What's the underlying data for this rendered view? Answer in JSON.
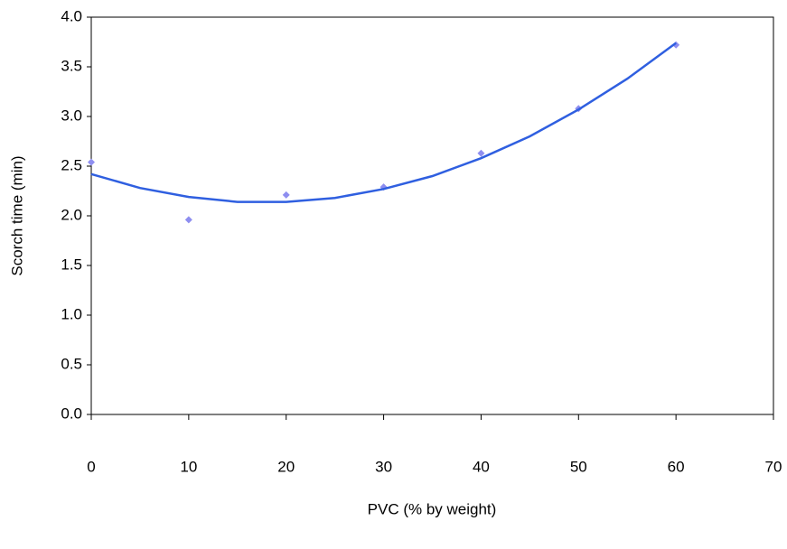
{
  "chart_data": {
    "type": "scatter",
    "x_label": "PVC (% by weight)",
    "y_label": "Scorch  time  (min)",
    "xlim": [
      0,
      70
    ],
    "xticks": [
      0,
      10,
      20,
      30,
      40,
      50,
      60,
      70
    ],
    "ylim": [
      0,
      4
    ],
    "yticks": [
      {
        "value": 0,
        "label": "0.0"
      },
      {
        "value": 0.5,
        "label": "0.5"
      },
      {
        "value": 1,
        "label": "1.0"
      },
      {
        "value": 1.5,
        "label": "1.5"
      },
      {
        "value": 2,
        "label": "2.0"
      },
      {
        "value": 2.5,
        "label": "2.5"
      },
      {
        "value": 3,
        "label": "3.0"
      },
      {
        "value": 3.5,
        "label": "3.5"
      },
      {
        "value": 4,
        "label": "4.0"
      }
    ],
    "series": [
      {
        "color": "#8e8ef0",
        "marker": "diamond",
        "x": [
          0,
          10,
          20,
          30,
          40,
          50,
          60
        ],
        "y": [
          2.54,
          1.96,
          2.21,
          2.29,
          2.63,
          3.08,
          3.72
        ]
      },
      {
        "color": "#2f5fe0",
        "marker": "line",
        "x": [
          0,
          5,
          10,
          15,
          20,
          25,
          30,
          35,
          40,
          45,
          50,
          55,
          60
        ],
        "y": [
          2.42,
          2.28,
          2.19,
          2.14,
          2.14,
          2.18,
          2.27,
          2.4,
          2.58,
          2.8,
          3.07,
          3.38,
          3.74
        ]
      }
    ]
  }
}
